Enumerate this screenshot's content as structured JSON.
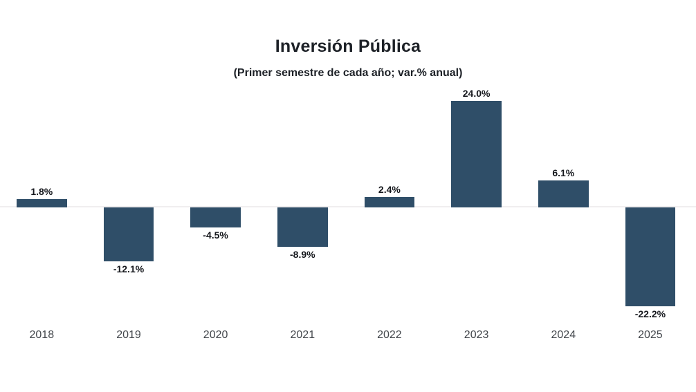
{
  "chart": {
    "title": "Inversión Pública",
    "subtitle": "(Primer semestre de cada año; var.% anual)"
  },
  "chart_data": {
    "type": "bar",
    "title": "Inversión Pública",
    "subtitle": "(Primer semestre de cada año; var.% anual)",
    "categories": [
      "2018",
      "2019",
      "2020",
      "2021",
      "2022",
      "2023",
      "2024",
      "2025"
    ],
    "values": [
      1.8,
      -12.1,
      -4.5,
      -8.9,
      2.4,
      24.0,
      6.1,
      -22.2
    ],
    "value_labels": [
      "1.8%",
      "-12.1%",
      "-4.5%",
      "-8.9%",
      "2.4%",
      "24.0%",
      "6.1%",
      "-22.2%"
    ],
    "xlabel": "",
    "ylabel": "",
    "ylim": [
      -24,
      26
    ],
    "grid": false,
    "legend": false,
    "data_labels": true,
    "bar_color": "#2f4e68",
    "baseline_color": "#f0eeef",
    "label_color": "#16181d",
    "axis_label_color": "#43474c"
  }
}
